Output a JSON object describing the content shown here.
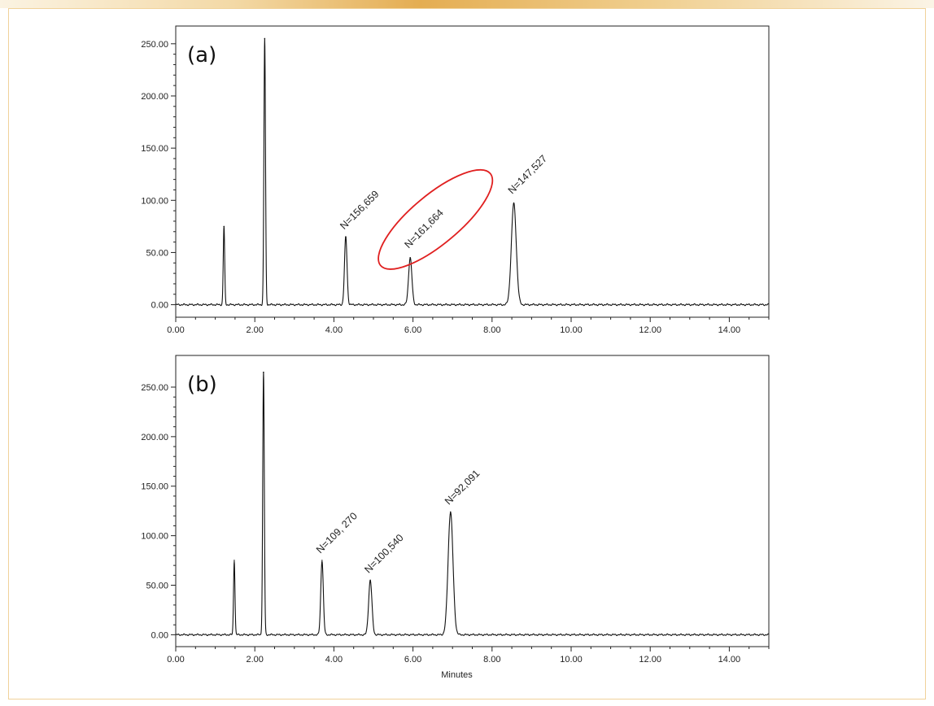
{
  "colors": {
    "frame": "#f0d29a",
    "band_accent": "#e4ad52",
    "trace": "#111111",
    "highlight": "#e02020"
  },
  "chart_data": [
    {
      "type": "line",
      "panel_label": "(a)",
      "xlabel": "",
      "ylabel": "",
      "xlim": [
        0,
        15
      ],
      "ylim": [
        -12,
        267
      ],
      "x_ticks": [
        "0.00",
        "2.00",
        "4.00",
        "6.00",
        "8.00",
        "10.00",
        "12.00",
        "14.00"
      ],
      "y_ticks": [
        "0.00",
        "50.00",
        "100.00",
        "150.00",
        "200.00",
        "250.00"
      ],
      "grid": false,
      "peaks": [
        {
          "x": 1.22,
          "height": 75,
          "width": 0.018
        },
        {
          "x": 2.25,
          "height": 255,
          "width": 0.02
        },
        {
          "x": 4.3,
          "height": 65,
          "width": 0.032
        },
        {
          "x": 5.93,
          "height": 45,
          "width": 0.042
        },
        {
          "x": 8.55,
          "height": 97,
          "width": 0.062
        }
      ],
      "annotations": [
        {
          "text": "N=156,659",
          "x": 4.3,
          "y": 70
        },
        {
          "text": "N=161,664",
          "x": 5.93,
          "y": 52,
          "highlighted": true
        },
        {
          "text": "N=147,527",
          "x": 8.55,
          "y": 104
        }
      ]
    },
    {
      "type": "line",
      "panel_label": "(b)",
      "xlabel": "Minutes",
      "ylabel": "",
      "xlim": [
        0,
        15
      ],
      "ylim": [
        -12,
        282
      ],
      "x_ticks": [
        "0.00",
        "2.00",
        "4.00",
        "6.00",
        "8.00",
        "10.00",
        "12.00",
        "14.00"
      ],
      "y_ticks": [
        "0.00",
        "50.00",
        "100.00",
        "150.00",
        "200.00",
        "250.00"
      ],
      "grid": false,
      "peaks": [
        {
          "x": 1.48,
          "height": 75,
          "width": 0.018
        },
        {
          "x": 2.22,
          "height": 265,
          "width": 0.02
        },
        {
          "x": 3.7,
          "height": 75,
          "width": 0.032
        },
        {
          "x": 4.92,
          "height": 55,
          "width": 0.042
        },
        {
          "x": 6.95,
          "height": 124,
          "width": 0.062
        }
      ],
      "annotations": [
        {
          "text": "N=109, 270",
          "x": 3.7,
          "y": 80
        },
        {
          "text": "N=100,540",
          "x": 4.92,
          "y": 60
        },
        {
          "text": "N=92,091",
          "x": 6.95,
          "y": 129
        }
      ]
    }
  ]
}
